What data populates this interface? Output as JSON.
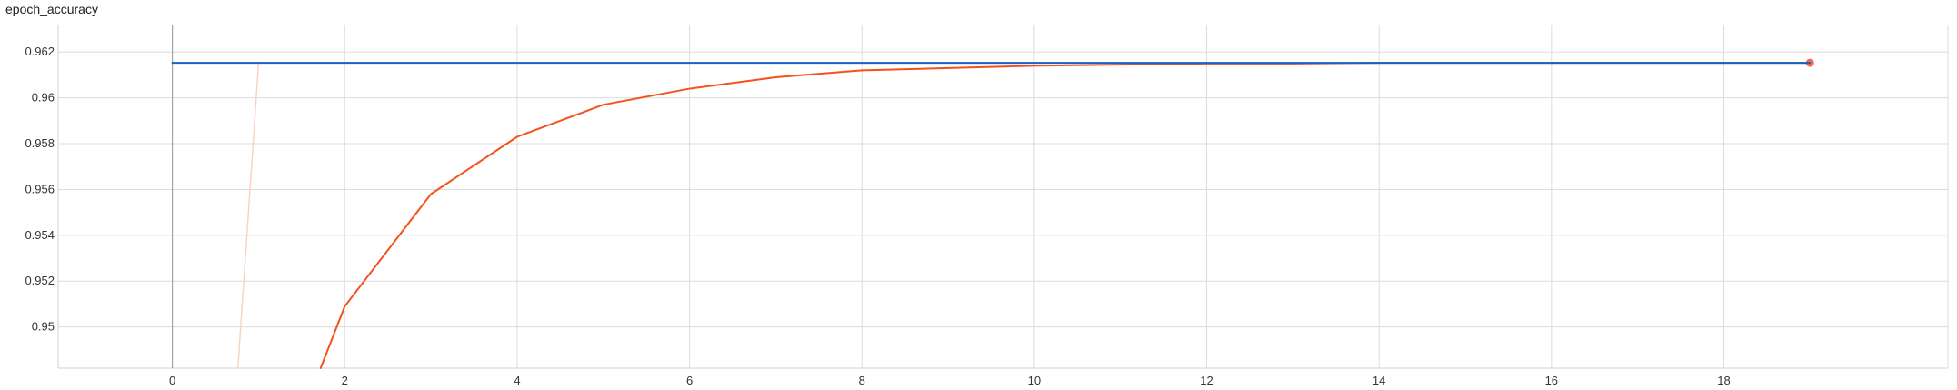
{
  "chart_data": {
    "type": "line",
    "title": "epoch_accuracy",
    "xlim": [
      -2.0,
      20.6
    ],
    "ylim": [
      0.9482,
      0.9632
    ],
    "xticks": [
      0,
      2,
      4,
      6,
      8,
      10,
      12,
      14,
      16,
      18
    ],
    "yticks": [
      0.95,
      0.952,
      0.954,
      0.956,
      0.958,
      0.96,
      0.962
    ],
    "xtick_labels": [
      "0",
      "2",
      "4",
      "6",
      "8",
      "10",
      "12",
      "14",
      "16",
      "18"
    ],
    "ytick_labels": [
      "0.95",
      "0.952",
      "0.954",
      "0.956",
      "0.958",
      "0.96",
      "0.962"
    ],
    "grid": true,
    "series": [
      {
        "kind": "raw",
        "color": "#fbd3c4",
        "x": [
          0.76,
          1
        ],
        "y": [
          0.9482,
          0.96153
        ]
      },
      {
        "kind": "smoothed",
        "color": "#f4511e",
        "x": [
          1.72,
          2,
          3,
          4,
          5,
          6,
          7,
          8,
          9,
          10,
          11,
          12,
          13,
          14,
          15,
          16,
          17,
          18,
          19
        ],
        "y": [
          0.9482,
          0.9509,
          0.9558,
          0.9583,
          0.9597,
          0.9604,
          0.9609,
          0.9612,
          0.9613,
          0.9614,
          0.96145,
          0.9615,
          0.9615,
          0.96153,
          0.96153,
          0.96153,
          0.96153,
          0.96153,
          0.96153
        ],
        "end_marker": true
      },
      {
        "kind": "reference",
        "color": "#1565c0",
        "x": [
          0,
          19
        ],
        "y": [
          0.96153,
          0.96153
        ]
      }
    ]
  }
}
